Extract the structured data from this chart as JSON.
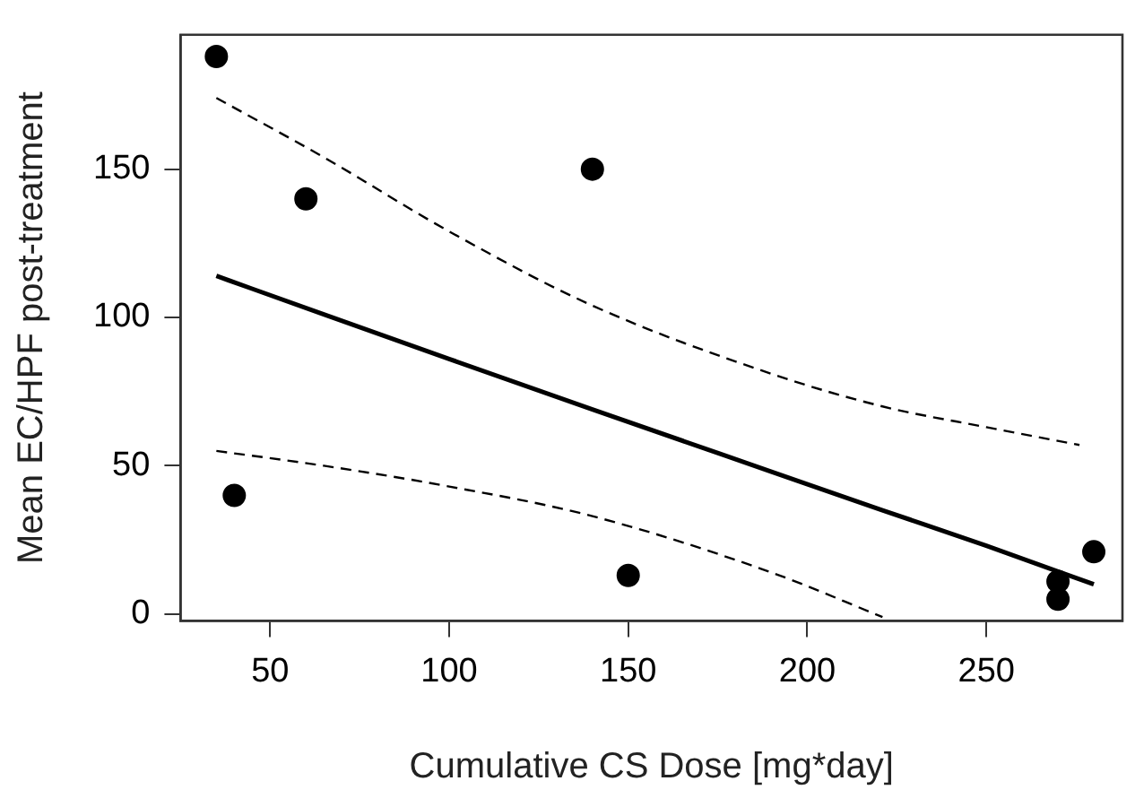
{
  "chart_data": {
    "type": "scatter",
    "xlabel": "Cumulative CS Dose [mg*day]",
    "ylabel": "Mean EC/HPF post-treatment",
    "xlim": [
      25,
      288
    ],
    "ylim": [
      -2.3,
      195.3
    ],
    "xticks": [
      50,
      100,
      150,
      200,
      250
    ],
    "yticks": [
      0,
      50,
      100,
      150
    ],
    "grid": false,
    "legend": false,
    "series": [
      {
        "type": "scatter",
        "color": "#000000",
        "marker": "circle",
        "x": [
          35,
          60,
          140,
          40,
          150,
          270,
          270,
          280
        ],
        "values": [
          188,
          140,
          150,
          40,
          13,
          11,
          5,
          21
        ]
      },
      {
        "type": "line",
        "color": "#000000",
        "marker": "none",
        "line_style": "solid",
        "x": [
          35,
          65,
          100,
          140,
          190,
          221,
          250,
          280
        ],
        "values": [
          114,
          101,
          86,
          69,
          48,
          35,
          23,
          10
        ]
      },
      {
        "type": "line",
        "color": "#000000",
        "marker": "none",
        "line_style": "dashed",
        "x": [
          35,
          65,
          100,
          140,
          190,
          221,
          250,
          276
        ],
        "values": [
          174,
          154,
          129,
          104,
          81,
          70,
          63,
          57
        ]
      },
      {
        "type": "line",
        "color": "#000000",
        "marker": "none",
        "line_style": "dashed",
        "x": [
          35,
          65,
          100,
          140,
          190,
          221
        ],
        "values": [
          55,
          50,
          43,
          33,
          14,
          -1
        ]
      }
    ]
  }
}
